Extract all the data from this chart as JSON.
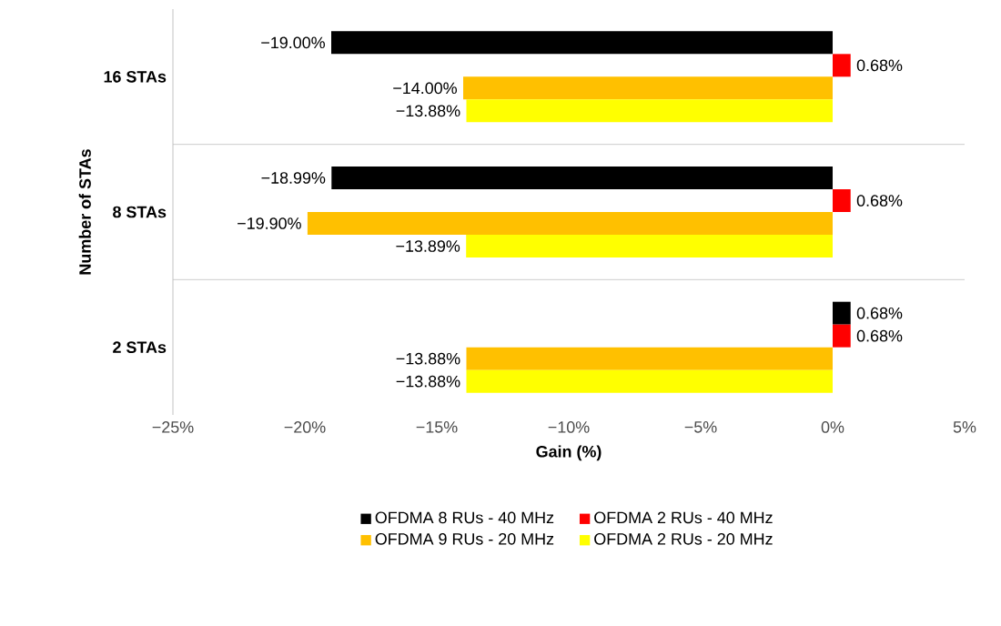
{
  "chart_data": {
    "type": "bar",
    "orientation": "horizontal",
    "xlabel": "Gain (%)",
    "ylabel": "Number of STAs",
    "categories": [
      "16 STAs",
      "8 STAs",
      "2 STAs"
    ],
    "series": [
      {
        "name": "OFDMA 8 RUs - 40 MHz",
        "color": "#000000",
        "values": [
          -19.0,
          -18.99,
          0.68
        ],
        "value_labels": [
          "−19.00%",
          "−18.99%",
          "0.68%"
        ]
      },
      {
        "name": "OFDMA 2 RUs - 40 MHz",
        "color": "#ff0000",
        "values": [
          0.68,
          0.68,
          0.68
        ],
        "value_labels": [
          "0.68%",
          "0.68%",
          "0.68%"
        ]
      },
      {
        "name": "OFDMA 9 RUs - 20 MHz",
        "color": "#ffc000",
        "values": [
          -14.0,
          -19.9,
          -13.88
        ],
        "value_labels": [
          "−14.00%",
          "−19.90%",
          "−13.88%"
        ]
      },
      {
        "name": "OFDMA 2 RUs - 20 MHz",
        "color": "#ffff00",
        "values": [
          -13.88,
          -13.89,
          -13.88
        ],
        "value_labels": [
          "−13.88%",
          "−13.89%",
          "−13.88%"
        ]
      }
    ],
    "xlim": [
      -25,
      5
    ],
    "xticks": [
      {
        "value": -25,
        "label": "−25%"
      },
      {
        "value": -20,
        "label": "−20%"
      },
      {
        "value": -15,
        "label": "−15%"
      },
      {
        "value": -10,
        "label": "−10%"
      },
      {
        "value": -5,
        "label": "−5%"
      },
      {
        "value": 0,
        "label": "0%"
      },
      {
        "value": 5,
        "label": "5%"
      }
    ],
    "grid": "y",
    "legend": "bottom"
  }
}
